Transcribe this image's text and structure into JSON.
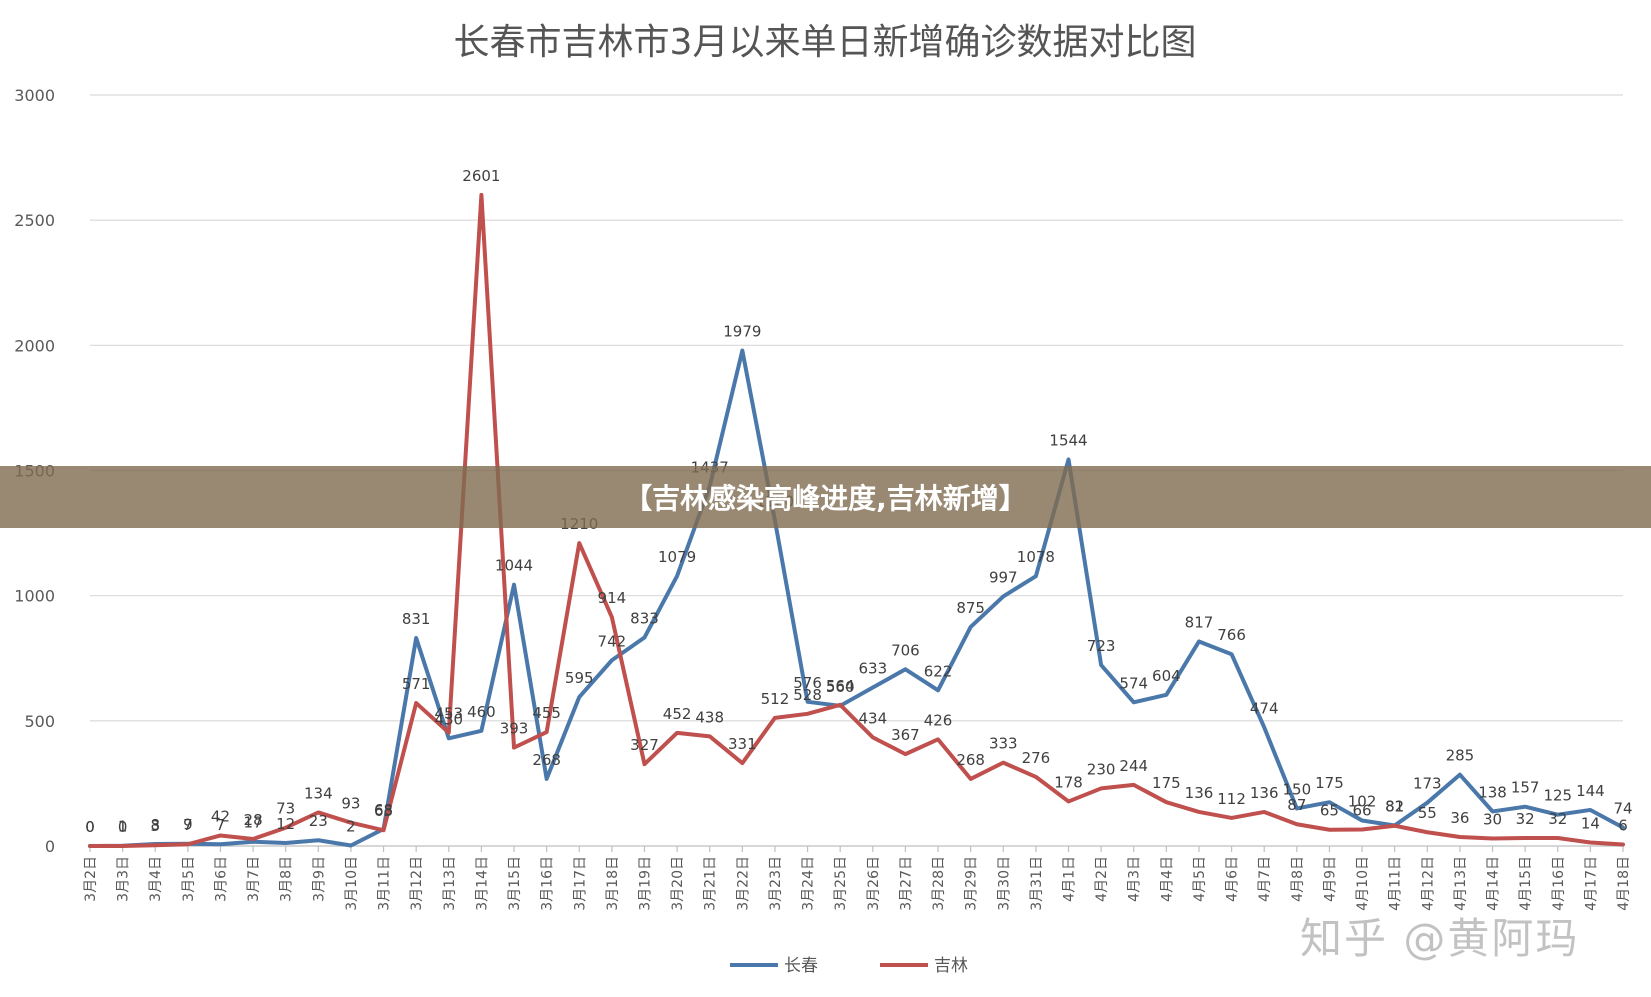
{
  "chart_data": {
    "type": "line",
    "title": "长春市吉林市3月以来单日新增确诊数据对比图",
    "categories": [
      "3月2日",
      "3月3日",
      "3月4日",
      "3月5日",
      "3月6日",
      "3月7日",
      "3月8日",
      "3月9日",
      "3月10日",
      "3月11日",
      "3月12日",
      "3月13日",
      "3月14日",
      "3月15日",
      "3月16日",
      "3月17日",
      "3月18日",
      "3月19日",
      "3月20日",
      "3月21日",
      "3月22日",
      "3月23日",
      "3月24日",
      "3月25日",
      "3月26日",
      "3月27日",
      "3月28日",
      "3月29日",
      "3月30日",
      "3月31日",
      "4月1日",
      "4月2日",
      "4月3日",
      "4月4日",
      "4月5日",
      "4月6日",
      "4月7日",
      "4月8日",
      "4月9日",
      "4月10日",
      "4月11日",
      "4月12日",
      "4月13日",
      "4月14日",
      "4月15日",
      "4月16日",
      "4月17日",
      "4月18日"
    ],
    "ylim": [
      0,
      3000
    ],
    "yticks": [
      0,
      500,
      1000,
      1500,
      2000,
      2500,
      3000
    ],
    "grid": true,
    "legend_position": "bottom",
    "series": [
      {
        "name": "长春",
        "color": "#4a78aa",
        "values": [
          0,
          1,
          8,
          9,
          7,
          17,
          12,
          23,
          2,
          68,
          831,
          430,
          460,
          1044,
          268,
          595,
          742,
          833,
          1079,
          1437,
          1979,
          1300,
          576,
          560,
          633,
          706,
          622,
          875,
          997,
          1078,
          1544,
          723,
          574,
          604,
          817,
          766,
          474,
          150,
          175,
          102,
          82,
          173,
          285,
          138,
          157,
          125,
          144,
          74
        ]
      },
      {
        "name": "吉林",
        "color": "#c0504d",
        "values": [
          0,
          0,
          3,
          7,
          42,
          28,
          73,
          134,
          93,
          63,
          571,
          453,
          2601,
          393,
          455,
          1210,
          914,
          327,
          452,
          438,
          331,
          512,
          528,
          564,
          434,
          367,
          426,
          268,
          333,
          276,
          178,
          230,
          244,
          175,
          136,
          112,
          136,
          87,
          65,
          66,
          81,
          55,
          36,
          30,
          32,
          32,
          14,
          6
        ]
      }
    ]
  },
  "banner": {
    "text": "【吉林感染高峰进度,吉林新增】"
  },
  "watermark": {
    "text": "知乎 @黄阿玛"
  }
}
